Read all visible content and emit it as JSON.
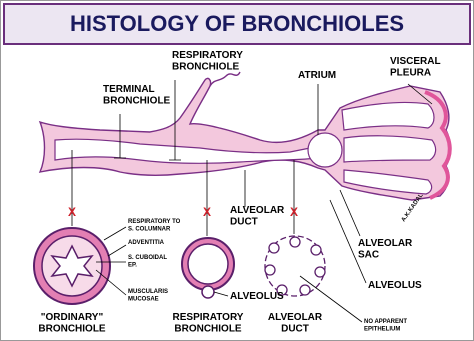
{
  "title": "HISTOLOGY OF BRONCHIOLES",
  "labels": [
    {
      "lines": [
        "RESPIRATORY",
        "BRONCHIOLE"
      ]
    },
    {
      "lines": [
        "TERMINAL",
        "BRONCHIOLE"
      ]
    },
    {
      "lines": [
        "ATRIUM"
      ]
    },
    {
      "lines": [
        "VISCERAL",
        "PLEURA"
      ]
    },
    {
      "lines": [
        "ALVEOLAR",
        "DUCT"
      ]
    },
    {
      "lines": [
        "ALVEOLAR",
        "SAC"
      ]
    },
    {
      "lines": [
        "ALVEOLUS"
      ]
    },
    {
      "lines": [
        "A.K.KADAL"
      ]
    },
    {
      "lines": [
        "RESPIRATORY TO",
        "S. COLUMNAR"
      ]
    },
    {
      "lines": [
        "ADVENTITIA"
      ]
    },
    {
      "lines": [
        "S. CUBOIDAL",
        "EP."
      ]
    },
    {
      "lines": [
        "MUSCULARIS",
        "MUCOSAE"
      ]
    },
    {
      "lines": [
        "ALVEOLUS"
      ]
    },
    {
      "lines": [
        "\"ORDINARY\"",
        "BRONCHIOLE"
      ]
    },
    {
      "lines": [
        "RESPIRATORY",
        "BRONCHIOLE"
      ]
    },
    {
      "lines": [
        "ALVEOLAR",
        "DUCT"
      ]
    },
    {
      "lines": [
        "NO APPARENT",
        "EPITHELIUM"
      ]
    }
  ],
  "markers": [
    "X",
    "X",
    "X"
  ]
}
